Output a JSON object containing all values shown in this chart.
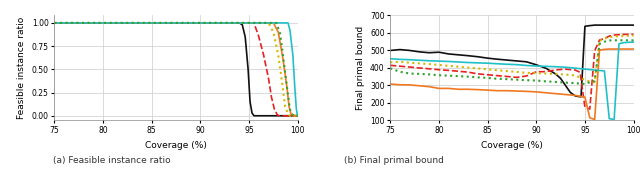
{
  "left_chart": {
    "xlabel": "Coverage (%)",
    "ylabel": "Feasible instance ratio",
    "xlim": [
      75,
      100
    ],
    "ylim": [
      -0.05,
      1.08
    ],
    "xticks": [
      75,
      80,
      85,
      90,
      95,
      100
    ],
    "yticks": [
      0.0,
      0.25,
      0.5,
      0.75,
      1.0
    ],
    "series": [
      {
        "color": "#111111",
        "linestyle": "solid",
        "linewidth": 1.2,
        "x": [
          75,
          90,
          91,
          92,
          93,
          94,
          94.3,
          94.6,
          94.9,
          95.1,
          95.3,
          95.5,
          96,
          100
        ],
        "y": [
          1.0,
          1.0,
          1.0,
          1.0,
          1.0,
          1.0,
          0.98,
          0.85,
          0.5,
          0.15,
          0.03,
          0.0,
          0.0,
          0.0
        ]
      },
      {
        "color": "#e82020",
        "linestyle": "dashed",
        "linewidth": 1.2,
        "x": [
          75,
          95.5,
          96.0,
          96.5,
          97.0,
          97.3,
          97.6,
          97.9,
          98.1,
          100
        ],
        "y": [
          1.0,
          1.0,
          0.85,
          0.65,
          0.4,
          0.2,
          0.07,
          0.01,
          0.0,
          0.0
        ]
      },
      {
        "color": "#d4b800",
        "linestyle": "dotted",
        "linewidth": 1.5,
        "x": [
          75,
          97.0,
          97.5,
          98.0,
          98.4,
          98.7,
          99.0,
          99.2,
          100
        ],
        "y": [
          1.0,
          1.0,
          0.9,
          0.65,
          0.35,
          0.1,
          0.02,
          0.0,
          0.0
        ]
      },
      {
        "color": "#f07820",
        "linestyle": "solid",
        "linewidth": 1.2,
        "x": [
          75,
          97.5,
          98.0,
          98.5,
          98.9,
          99.1,
          99.3,
          99.5,
          100
        ],
        "y": [
          1.0,
          1.0,
          0.9,
          0.6,
          0.3,
          0.1,
          0.02,
          0.0,
          0.0
        ]
      },
      {
        "color": "#20c0c8",
        "linestyle": "solid",
        "linewidth": 1.2,
        "x": [
          75,
          99.0,
          99.2,
          99.5,
          99.7,
          99.85,
          99.95,
          100
        ],
        "y": [
          1.0,
          1.0,
          0.92,
          0.65,
          0.3,
          0.08,
          0.01,
          0.0
        ]
      },
      {
        "color": "#30a030",
        "linestyle": "dotted",
        "linewidth": 1.5,
        "x": [
          75,
          97.8,
          98.2,
          98.6,
          99.0,
          99.2,
          99.4,
          99.6,
          100
        ],
        "y": [
          1.0,
          1.0,
          0.88,
          0.55,
          0.22,
          0.07,
          0.02,
          0.0,
          0.0
        ]
      }
    ]
  },
  "right_chart": {
    "xlabel": "Coverage (%)",
    "ylabel": "Final primal bound",
    "xlim": [
      75,
      100
    ],
    "ylim": [
      100,
      700
    ],
    "xticks": [
      75,
      80,
      85,
      90,
      95,
      100
    ],
    "yticks": [
      100,
      200,
      300,
      400,
      500,
      600,
      700
    ],
    "series": [
      {
        "color": "#111111",
        "linestyle": "solid",
        "linewidth": 1.2,
        "x": [
          75,
          76,
          77,
          78,
          79,
          80,
          81,
          82,
          83,
          84,
          85,
          86,
          87,
          88,
          89,
          90,
          91,
          92,
          92.5,
          93,
          93.5,
          94,
          94.3,
          94.6,
          95.0,
          95.5,
          96,
          97,
          98,
          99,
          100
        ],
        "y": [
          500,
          505,
          500,
          492,
          487,
          490,
          480,
          475,
          470,
          464,
          456,
          450,
          445,
          440,
          435,
          418,
          398,
          365,
          340,
          300,
          260,
          240,
          237,
          235,
          638,
          642,
          645,
          645,
          645,
          645,
          645
        ]
      },
      {
        "color": "#e82020",
        "linestyle": "dashed",
        "linewidth": 1.2,
        "x": [
          75,
          76,
          77,
          78,
          79,
          80,
          81,
          82,
          83,
          84,
          85,
          86,
          87,
          88,
          89,
          90,
          91,
          92,
          93,
          94,
          94.5,
          95.0,
          95.5,
          96.0,
          96.5,
          97.0,
          97.5,
          98,
          99,
          100
        ],
        "y": [
          415,
          410,
          405,
          400,
          395,
          390,
          386,
          381,
          376,
          366,
          361,
          356,
          351,
          346,
          354,
          378,
          379,
          389,
          393,
          388,
          375,
          175,
          165,
          498,
          560,
          568,
          582,
          588,
          592,
          592
        ]
      },
      {
        "color": "#d4b800",
        "linestyle": "dotted",
        "linewidth": 1.5,
        "x": [
          75,
          76,
          77,
          78,
          79,
          80,
          81,
          82,
          83,
          84,
          85,
          86,
          87,
          88,
          89,
          90,
          91,
          92,
          93,
          94,
          95,
          95.5,
          96,
          96.5,
          97,
          97.5,
          98,
          99,
          100
        ],
        "y": [
          432,
          435,
          430,
          426,
          422,
          417,
          412,
          407,
          402,
          397,
          392,
          387,
          382,
          377,
          372,
          370,
          368,
          366,
          362,
          357,
          332,
          322,
          318,
          555,
          568,
          575,
          580,
          583,
          585
        ]
      },
      {
        "color": "#f07820",
        "linestyle": "solid",
        "linewidth": 1.2,
        "x": [
          75,
          76,
          77,
          78,
          79,
          80,
          81,
          82,
          83,
          84,
          85,
          86,
          87,
          88,
          89,
          90,
          91,
          92,
          93,
          94,
          95,
          95.5,
          96,
          96.5,
          97,
          97.5,
          98,
          99,
          100
        ],
        "y": [
          308,
          304,
          303,
          298,
          293,
          283,
          283,
          278,
          278,
          276,
          273,
          270,
          270,
          268,
          266,
          263,
          258,
          253,
          248,
          243,
          233,
          115,
          105,
          502,
          506,
          508,
          508,
          508,
          508
        ]
      },
      {
        "color": "#20c0c8",
        "linestyle": "solid",
        "linewidth": 1.2,
        "x": [
          75,
          76,
          77,
          78,
          79,
          80,
          81,
          82,
          83,
          84,
          85,
          86,
          87,
          88,
          89,
          90,
          91,
          92,
          93,
          94,
          95,
          96,
          97,
          97.5,
          98,
          98.5,
          99,
          100
        ],
        "y": [
          453,
          449,
          447,
          444,
          441,
          439,
          437,
          434,
          431,
          429,
          427,
          424,
          421,
          419,
          414,
          411,
          409,
          407,
          404,
          399,
          393,
          388,
          383,
          110,
          105,
          538,
          545,
          548
        ]
      },
      {
        "color": "#30a030",
        "linestyle": "dotted",
        "linewidth": 1.5,
        "x": [
          75,
          76,
          77,
          78,
          79,
          80,
          81,
          82,
          83,
          84,
          85,
          86,
          87,
          88,
          89,
          90,
          91,
          92,
          93,
          94,
          95,
          95.5,
          96,
          96.5,
          97,
          97.5,
          98,
          99,
          100
        ],
        "y": [
          398,
          378,
          368,
          366,
          363,
          358,
          356,
          353,
          350,
          346,
          343,
          338,
          336,
          333,
          330,
          328,
          323,
          320,
          316,
          313,
          308,
          318,
          325,
          538,
          550,
          557,
          558,
          558,
          558
        ]
      }
    ]
  },
  "caption_left": "(a) Feasible instance ratio",
  "caption_right": "(b) Final primal bound",
  "background_color": "#ffffff",
  "grid_color": "#cccccc"
}
